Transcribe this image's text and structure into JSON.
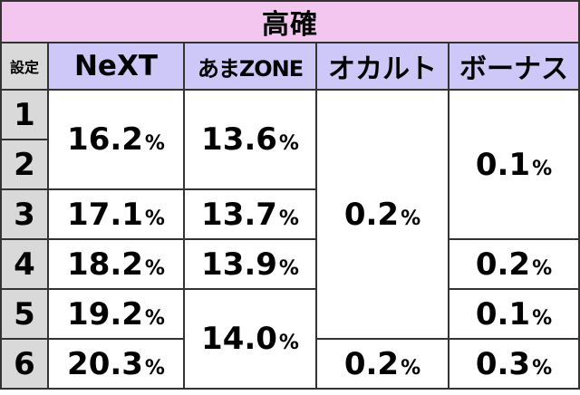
{
  "title": "高確",
  "headers": {
    "setting": "設定",
    "next": "NeXT",
    "ama_zone": "あまZONE",
    "occult": "オカルト",
    "bonus": "ボーナス"
  },
  "percent_sign": "%",
  "levels": [
    "1",
    "2",
    "3",
    "4",
    "5",
    "6"
  ],
  "next_values": {
    "s12": "16.2",
    "s3": "17.1",
    "s4": "18.2",
    "s5": "19.2",
    "s6": "20.3"
  },
  "ama_zone_values": {
    "s12": "13.6",
    "s3": "13.7",
    "s4": "13.9",
    "s56": "14.0"
  },
  "occult_values": {
    "s1to5": "0.2",
    "s6": "0.2"
  },
  "bonus_values": {
    "s1to3": "0.1",
    "s4": "0.2",
    "s5": "0.1",
    "s6": "0.3"
  },
  "colors": {
    "title_bg": "#f3c6f0",
    "header_bg": "#cdc8f8",
    "level_bg": "#d9d9d9",
    "border": "#333333"
  }
}
